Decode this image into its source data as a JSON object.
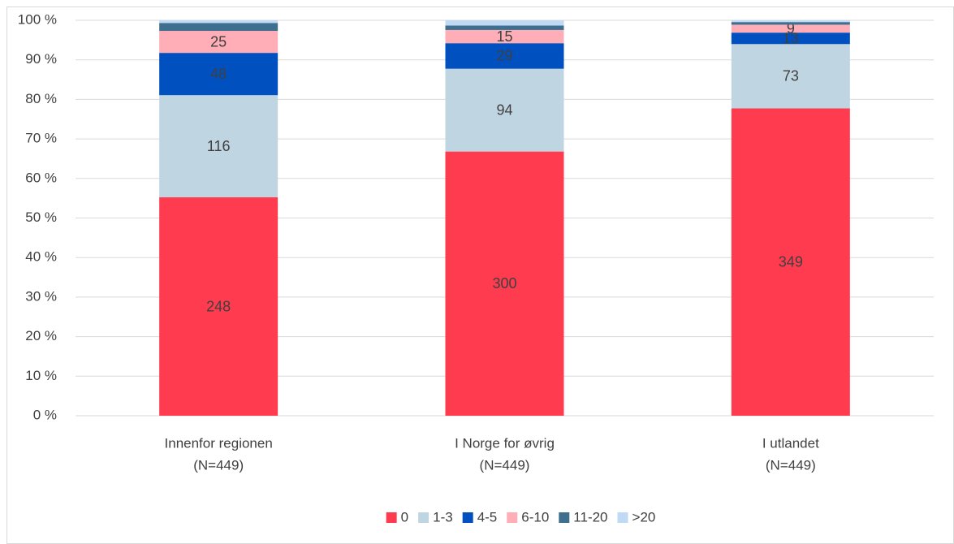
{
  "chart_data": {
    "type": "bar",
    "stacking": "percent",
    "categories": [
      [
        "Innenfor regionen",
        "(N=449)"
      ],
      [
        "I Norge for øvrig",
        "(N=449)"
      ],
      [
        "I utlandet",
        "(N=449)"
      ]
    ],
    "series": [
      {
        "name": "0",
        "color": "#ff3b4f",
        "values": [
          248,
          300,
          349
        ],
        "data_labels": true
      },
      {
        "name": "1-3",
        "color": "#c0d5e2",
        "values": [
          116,
          94,
          73
        ],
        "data_labels": true
      },
      {
        "name": "4-5",
        "color": "#0050bf",
        "values": [
          48,
          29,
          13
        ],
        "data_labels": true
      },
      {
        "name": "6-10",
        "color": "#ffadb6",
        "values": [
          25,
          15,
          9
        ],
        "data_labels": true
      },
      {
        "name": "11-20",
        "color": "#3e6f8f",
        "values": [
          9,
          5,
          3
        ],
        "data_labels": false
      },
      {
        "name": ">20",
        "color": "#c0d9f5",
        "values": [
          3,
          6,
          2
        ],
        "data_labels": false
      }
    ],
    "ylim": [
      0,
      100
    ],
    "yticks": [
      {
        "value": 0,
        "label": "0 %"
      },
      {
        "value": 10,
        "label": "10 %"
      },
      {
        "value": 20,
        "label": "20 %"
      },
      {
        "value": 30,
        "label": "30 %"
      },
      {
        "value": 40,
        "label": "40 %"
      },
      {
        "value": 50,
        "label": "50 %"
      },
      {
        "value": 60,
        "label": "60 %"
      },
      {
        "value": 70,
        "label": "70 %"
      },
      {
        "value": 80,
        "label": "80 %"
      },
      {
        "value": 90,
        "label": "90 %"
      },
      {
        "value": 100,
        "label": "100 %"
      }
    ],
    "grid": true,
    "legend": "bottom"
  }
}
